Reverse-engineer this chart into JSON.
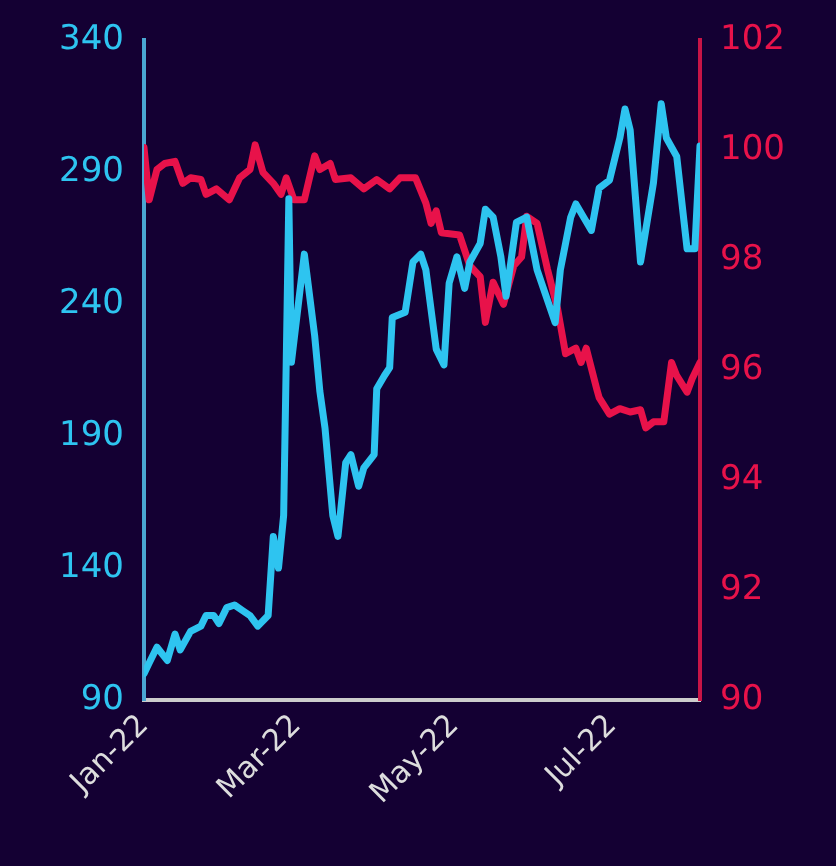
{
  "chart_data": {
    "type": "line",
    "xlim": [
      "2022-01-01",
      "2022-08-04"
    ],
    "xticks": [
      {
        "value": "2022-01-01",
        "label": "Jan-22"
      },
      {
        "value": "2022-03-01",
        "label": "Mar-22"
      },
      {
        "value": "2022-05-01",
        "label": "May-22"
      },
      {
        "value": "2022-07-01",
        "label": "Jul-22"
      }
    ],
    "ylim": [
      90,
      340
    ],
    "yticks": [
      90,
      140,
      190,
      240,
      290,
      340
    ],
    "y2lim": [
      90,
      102
    ],
    "y2ticks": [
      90,
      92,
      94,
      96,
      98,
      100,
      102
    ],
    "grid": false,
    "legend": false,
    "marker": "none",
    "line_style": "solid",
    "series": [
      {
        "color": "#2ec4f0",
        "axis": "y",
        "x": [
          "2022-01-01",
          "2022-01-03",
          "2022-01-06",
          "2022-01-10",
          "2022-01-13",
          "2022-01-15",
          "2022-01-19",
          "2022-01-23",
          "2022-01-25",
          "2022-01-28",
          "2022-01-30",
          "2022-02-02",
          "2022-02-05",
          "2022-02-08",
          "2022-02-11",
          "2022-02-14",
          "2022-02-18",
          "2022-02-20",
          "2022-02-22",
          "2022-02-24",
          "2022-02-25",
          "2022-02-26",
          "2022-02-27",
          "2022-03-04",
          "2022-03-08",
          "2022-03-10",
          "2022-03-12",
          "2022-03-15",
          "2022-03-17",
          "2022-03-20",
          "2022-03-22",
          "2022-03-25",
          "2022-03-27",
          "2022-03-31",
          "2022-04-01",
          "2022-04-04",
          "2022-04-06",
          "2022-04-07",
          "2022-04-12",
          "2022-04-15",
          "2022-04-18",
          "2022-04-20",
          "2022-04-24",
          "2022-04-27",
          "2022-04-29",
          "2022-05-02",
          "2022-05-05",
          "2022-05-07",
          "2022-05-11",
          "2022-05-13",
          "2022-05-16",
          "2022-05-19",
          "2022-05-21",
          "2022-05-25",
          "2022-05-29",
          "2022-06-02",
          "2022-06-09",
          "2022-06-11",
          "2022-06-15",
          "2022-06-17",
          "2022-06-20",
          "2022-06-23",
          "2022-06-26",
          "2022-06-30",
          "2022-07-04",
          "2022-07-06",
          "2022-07-08",
          "2022-07-12",
          "2022-07-14",
          "2022-07-17",
          "2022-07-20",
          "2022-07-22",
          "2022-07-26",
          "2022-07-30",
          "2022-08-02",
          "2022-08-04"
        ],
        "values": [
          100,
          104,
          110,
          105,
          115,
          109,
          116,
          118,
          122,
          122,
          119,
          125,
          126,
          124,
          122,
          118,
          122,
          152,
          140,
          160,
          218,
          280,
          218,
          259,
          228,
          207,
          193,
          160,
          152,
          180,
          183,
          171,
          178,
          183,
          208,
          213,
          216,
          235,
          237,
          256,
          259,
          253,
          223,
          217,
          248,
          258,
          246,
          256,
          263,
          276,
          273,
          258,
          243,
          271,
          273,
          253,
          233,
          253,
          273,
          278,
          273,
          268,
          284,
          287,
          303,
          314,
          306,
          256,
          268,
          286,
          316,
          303,
          296,
          261,
          261,
          300
        ]
      },
      {
        "color": "#e8124a",
        "axis": "y2",
        "x": [
          "2022-01-01",
          "2022-01-03",
          "2022-01-06",
          "2022-01-09",
          "2022-01-13",
          "2022-01-16",
          "2022-01-19",
          "2022-01-23",
          "2022-01-25",
          "2022-01-29",
          "2022-02-03",
          "2022-02-07",
          "2022-02-11",
          "2022-02-13",
          "2022-02-16",
          "2022-02-20",
          "2022-02-23",
          "2022-02-25",
          "2022-02-28",
          "2022-03-04",
          "2022-03-08",
          "2022-03-10",
          "2022-03-14",
          "2022-03-16",
          "2022-03-22",
          "2022-03-27",
          "2022-04-01",
          "2022-04-06",
          "2022-04-10",
          "2022-04-16",
          "2022-04-20",
          "2022-04-22",
          "2022-04-24",
          "2022-04-26",
          "2022-05-03",
          "2022-05-07",
          "2022-05-11",
          "2022-05-13",
          "2022-05-16",
          "2022-05-20",
          "2022-05-24",
          "2022-05-27",
          "2022-05-29",
          "2022-06-02",
          "2022-06-06",
          "2022-06-10",
          "2022-06-13",
          "2022-06-17",
          "2022-06-19",
          "2022-06-21",
          "2022-06-25",
          "2022-06-26",
          "2022-06-30",
          "2022-07-04",
          "2022-07-08",
          "2022-07-12",
          "2022-07-14",
          "2022-07-17",
          "2022-07-21",
          "2022-07-24",
          "2022-07-26",
          "2022-07-30",
          "2022-08-01",
          "2022-08-04"
        ],
        "values": [
          100.05,
          99.1,
          99.65,
          99.76,
          99.8,
          99.4,
          99.5,
          99.47,
          99.2,
          99.3,
          99.1,
          99.5,
          99.65,
          100.1,
          99.6,
          99.4,
          99.2,
          99.5,
          99.1,
          99.1,
          99.9,
          99.65,
          99.76,
          99.47,
          99.5,
          99.3,
          99.47,
          99.3,
          99.5,
          99.5,
          99.04,
          98.67,
          98.9,
          98.5,
          98.46,
          97.9,
          97.7,
          96.87,
          97.6,
          97.2,
          97.9,
          98.06,
          98.8,
          98.67,
          97.84,
          97.1,
          96.3,
          96.4,
          96.14,
          96.4,
          95.67,
          95.5,
          95.2,
          95.3,
          95.24,
          95.28,
          94.95,
          95.06,
          95.06,
          96.14,
          95.9,
          95.6,
          95.85,
          96.14
        ]
      }
    ]
  }
}
